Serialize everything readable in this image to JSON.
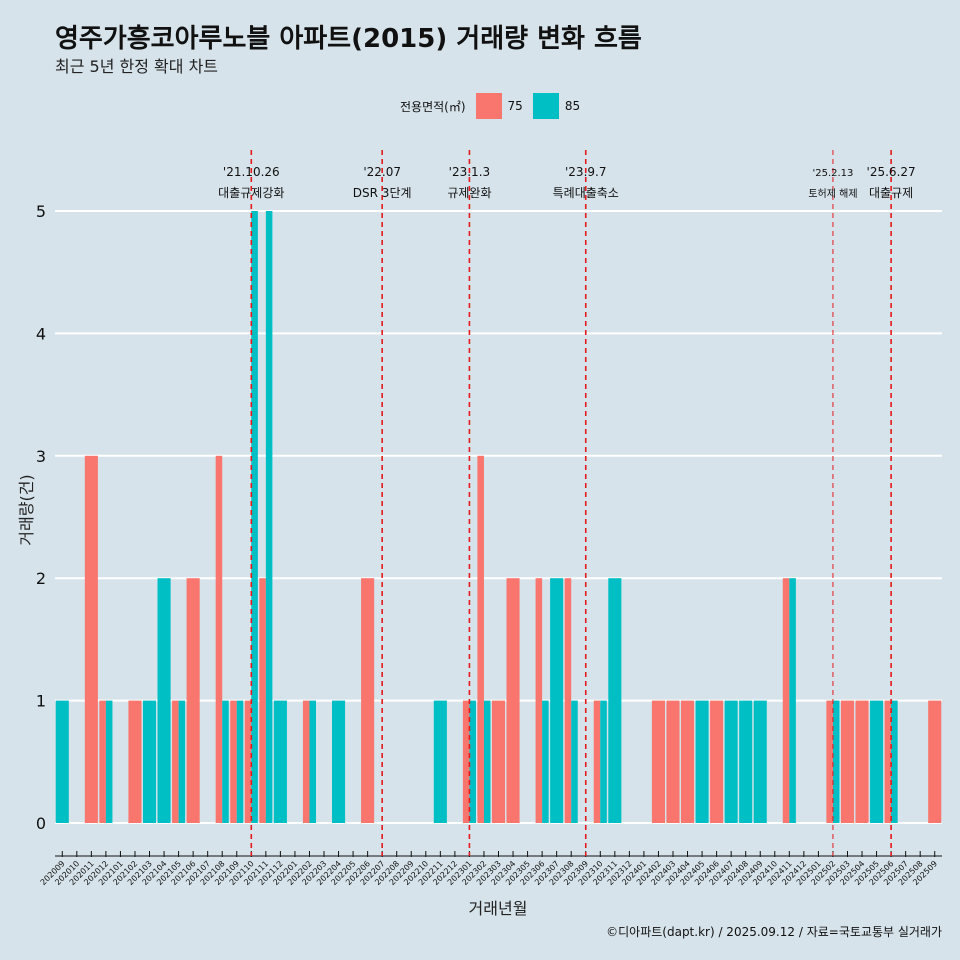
{
  "title": "영주가흥코아루노블 아파트(2015) 거래량 변화 흐름",
  "subtitle": "최근 5년 한정 확대 차트",
  "legend": {
    "title": "전용면적(㎡)",
    "items": [
      {
        "label": "75",
        "color": "#f8766d"
      },
      {
        "label": "85",
        "color": "#00bfc4"
      }
    ]
  },
  "footer": "©디아파트(dapt.kr) / 2025.09.12 / 자료=국토교통부 실거래가",
  "chart_data": {
    "type": "bar",
    "xlabel": "거래년월",
    "ylabel": "거래량(건)",
    "ylim": [
      0,
      5
    ],
    "yticks": [
      0,
      1,
      2,
      3,
      4,
      5
    ],
    "categories": [
      "202009",
      "202010",
      "202011",
      "202012",
      "202101",
      "202102",
      "202103",
      "202104",
      "202105",
      "202106",
      "202107",
      "202108",
      "202109",
      "202110",
      "202111",
      "202112",
      "202201",
      "202202",
      "202203",
      "202204",
      "202205",
      "202206",
      "202207",
      "202208",
      "202209",
      "202210",
      "202211",
      "202212",
      "202301",
      "202302",
      "202303",
      "202304",
      "202305",
      "202306",
      "202307",
      "202308",
      "202309",
      "202310",
      "202311",
      "202312",
      "202401",
      "202402",
      "202403",
      "202404",
      "202405",
      "202406",
      "202407",
      "202408",
      "202409",
      "202410",
      "202411",
      "202412",
      "202501",
      "202502",
      "202503",
      "202504",
      "202505",
      "202506",
      "202507",
      "202508",
      "202509"
    ],
    "series": [
      {
        "name": "75",
        "color": "#f8766d",
        "values": [
          0,
          0,
          3,
          1,
          0,
          1,
          0,
          0,
          1,
          2,
          0,
          3,
          1,
          1,
          2,
          0,
          0,
          1,
          0,
          0,
          0,
          2,
          0,
          0,
          0,
          0,
          0,
          0,
          1,
          3,
          1,
          2,
          0,
          2,
          0,
          2,
          0,
          1,
          0,
          0,
          0,
          1,
          1,
          1,
          0,
          1,
          0,
          0,
          0,
          0,
          2,
          0,
          0,
          1,
          1,
          1,
          0,
          1,
          0,
          0,
          1
        ]
      },
      {
        "name": "85",
        "color": "#00bfc4",
        "values": [
          1,
          0,
          0,
          1,
          0,
          0,
          1,
          2,
          1,
          0,
          0,
          1,
          1,
          5,
          5,
          1,
          0,
          1,
          0,
          1,
          0,
          0,
          0,
          0,
          0,
          0,
          1,
          0,
          1,
          1,
          0,
          0,
          0,
          1,
          2,
          1,
          0,
          1,
          2,
          0,
          0,
          0,
          0,
          0,
          1,
          0,
          1,
          1,
          1,
          0,
          2,
          0,
          0,
          1,
          0,
          0,
          1,
          1,
          0,
          0,
          0
        ]
      }
    ],
    "events": [
      {
        "date": "'21.10.26",
        "label": "대출규제강화",
        "x": "202110"
      },
      {
        "date": "'22.07",
        "label": "DSR 3단계",
        "x": "202207"
      },
      {
        "date": "'23.1.3",
        "label": "규제완화",
        "x": "202301"
      },
      {
        "date": "'23.9.7",
        "label": "특례대출축소",
        "x": "202309"
      },
      {
        "date": "'25.2.13",
        "label": "토허제 해제",
        "x": "202502",
        "small": true
      },
      {
        "date": "'25.6.27",
        "label": "대출규제",
        "x": "202506"
      }
    ],
    "grid": true,
    "legend_position": "top"
  }
}
